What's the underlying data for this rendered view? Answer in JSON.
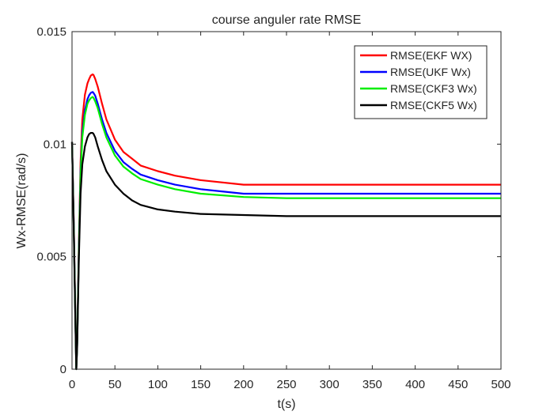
{
  "chart_data": {
    "type": "line",
    "title": "course anguler rate RMSE",
    "xlabel": "t(s)",
    "ylabel": "Wx-RMSE(rad/s)",
    "xlim": [
      0,
      500
    ],
    "ylim": [
      0,
      0.015
    ],
    "xticks": [
      0,
      50,
      100,
      150,
      200,
      250,
      300,
      350,
      400,
      450,
      500
    ],
    "xtick_labels": [
      "0",
      "50",
      "100",
      "150",
      "200",
      "250",
      "300",
      "350",
      "400",
      "450",
      "500"
    ],
    "yticks": [
      0,
      0.005,
      0.01,
      0.015
    ],
    "ytick_labels": [
      "0",
      "0.005",
      "0.01",
      "0.015"
    ],
    "grid": false,
    "legend_position": "top-right",
    "series": [
      {
        "name": "RMSE(EKF WX)",
        "color": "#ff0000",
        "x": [
          0,
          2,
          4,
          5,
          6,
          8,
          10,
          12,
          15,
          18,
          20,
          22,
          24,
          25,
          27,
          30,
          35,
          40,
          50,
          60,
          70,
          80,
          100,
          120,
          150,
          200,
          250,
          300,
          350,
          400,
          450,
          500
        ],
        "y": [
          0.0101,
          0.0065,
          0.0022,
          0.0,
          0.0012,
          0.0056,
          0.0092,
          0.0111,
          0.0122,
          0.0127,
          0.0129,
          0.01305,
          0.0131,
          0.01308,
          0.0129,
          0.01255,
          0.0118,
          0.0111,
          0.0102,
          0.00965,
          0.00935,
          0.00905,
          0.0088,
          0.0086,
          0.0084,
          0.0082,
          0.0082,
          0.0082,
          0.0082,
          0.0082,
          0.0082,
          0.0082
        ]
      },
      {
        "name": "RMSE(UKF Wx)",
        "color": "#0000ff",
        "x": [
          0,
          2,
          4,
          5,
          6,
          8,
          10,
          12,
          15,
          18,
          20,
          22,
          24,
          25,
          27,
          30,
          35,
          40,
          50,
          60,
          70,
          80,
          100,
          120,
          150,
          200,
          250,
          300,
          350,
          400,
          450,
          500
        ],
        "y": [
          0.0101,
          0.0064,
          0.0021,
          0.0,
          0.0011,
          0.0054,
          0.0088,
          0.0105,
          0.0115,
          0.012,
          0.01218,
          0.01228,
          0.01232,
          0.01228,
          0.01215,
          0.0118,
          0.0111,
          0.0105,
          0.0097,
          0.0092,
          0.0089,
          0.00865,
          0.0084,
          0.0082,
          0.008,
          0.0078,
          0.0078,
          0.0078,
          0.0078,
          0.0078,
          0.0078,
          0.0078
        ]
      },
      {
        "name": "RMSE(CKF3 Wx)",
        "color": "#00ee00",
        "x": [
          0,
          2,
          4,
          5,
          6,
          8,
          10,
          12,
          15,
          18,
          20,
          22,
          24,
          25,
          27,
          30,
          35,
          40,
          50,
          60,
          70,
          80,
          100,
          120,
          150,
          200,
          250,
          300,
          350,
          400,
          450,
          500
        ],
        "y": [
          0.0101,
          0.0063,
          0.0021,
          0.0,
          0.0011,
          0.0053,
          0.0086,
          0.0103,
          0.0113,
          0.0118,
          0.01195,
          0.01205,
          0.0121,
          0.01206,
          0.0119,
          0.0116,
          0.0109,
          0.0103,
          0.0095,
          0.009,
          0.0087,
          0.00845,
          0.0082,
          0.008,
          0.0078,
          0.00765,
          0.0076,
          0.0076,
          0.0076,
          0.0076,
          0.0076,
          0.0076
        ]
      },
      {
        "name": "RMSE(CKF5 Wx)",
        "color": "#000000",
        "x": [
          0,
          2,
          4,
          5,
          6,
          8,
          10,
          12,
          15,
          18,
          20,
          22,
          24,
          25,
          27,
          30,
          35,
          40,
          50,
          60,
          70,
          80,
          100,
          120,
          150,
          200,
          250,
          300,
          350,
          400,
          450,
          500
        ],
        "y": [
          0.0101,
          0.0062,
          0.002,
          0.0,
          0.001,
          0.005,
          0.0078,
          0.0091,
          0.0099,
          0.0103,
          0.01045,
          0.0105,
          0.0105,
          0.01046,
          0.0103,
          0.0099,
          0.0093,
          0.0088,
          0.0082,
          0.0078,
          0.0075,
          0.0073,
          0.0071,
          0.007,
          0.0069,
          0.00685,
          0.0068,
          0.0068,
          0.0068,
          0.0068,
          0.0068,
          0.0068
        ]
      }
    ]
  }
}
